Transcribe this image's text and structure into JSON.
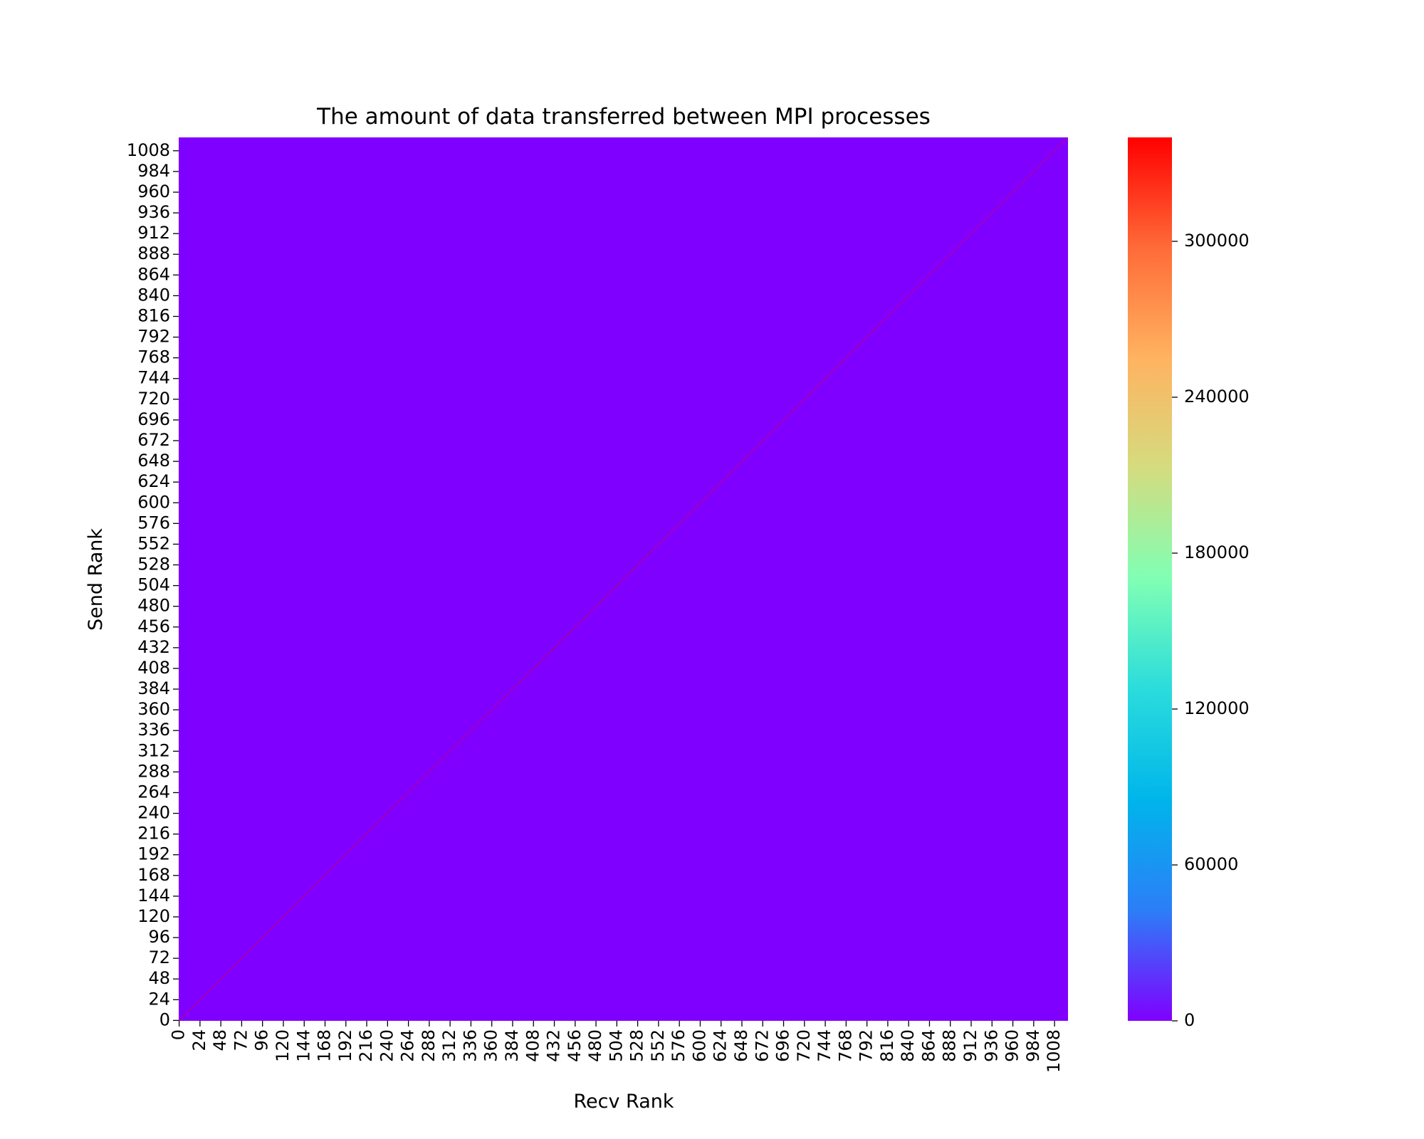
{
  "chart_data": {
    "type": "heatmap",
    "title": "The amount of data transferred between MPI processes",
    "xlabel": "Recv Rank",
    "ylabel": "Send Rank",
    "n_ranks": 1024,
    "tick_step": 24,
    "x_ticks": [
      "0",
      "24",
      "48",
      "72",
      "96",
      "120",
      "144",
      "168",
      "192",
      "216",
      "240",
      "264",
      "288",
      "312",
      "336",
      "360",
      "384",
      "408",
      "432",
      "456",
      "480",
      "504",
      "528",
      "552",
      "576",
      "600",
      "624",
      "648",
      "672",
      "696",
      "720",
      "744",
      "768",
      "792",
      "816",
      "840",
      "864",
      "888",
      "912",
      "936",
      "960",
      "984",
      "1008"
    ],
    "y_ticks": [
      "0",
      "24",
      "48",
      "72",
      "96",
      "120",
      "144",
      "168",
      "192",
      "216",
      "240",
      "264",
      "288",
      "312",
      "336",
      "360",
      "384",
      "408",
      "432",
      "456",
      "480",
      "504",
      "528",
      "552",
      "576",
      "600",
      "624",
      "648",
      "672",
      "696",
      "720",
      "744",
      "768",
      "792",
      "816",
      "840",
      "864",
      "888",
      "912",
      "936",
      "960",
      "984",
      "1008"
    ],
    "background_value": 0,
    "diagonal_value": 340000,
    "colorbar": {
      "colormap": "rainbow",
      "vmin": 0,
      "vmax": 340000,
      "ticks": [
        "0",
        "60000",
        "120000",
        "180000",
        "240000",
        "300000"
      ],
      "colors": [
        "#8000ff",
        "#2c7ef7",
        "#00b5eb",
        "#2adcdc",
        "#80ffb4",
        "#d4dc7f",
        "#ffb360",
        "#ff6b38",
        "#ff0000"
      ]
    },
    "grid": false,
    "legend": "colorbar-right"
  }
}
